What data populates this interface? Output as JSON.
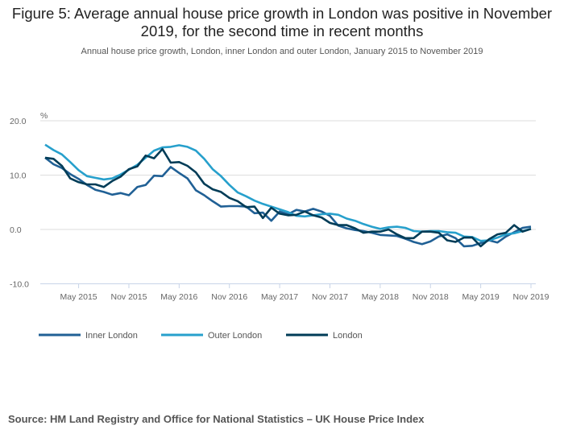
{
  "chart_data": {
    "type": "line",
    "title": "Figure 5: Average annual house price growth in London was positive in November 2019, for the second time in recent months",
    "subtitle": "Annual house price growth, London, inner London and outer London, January 2015 to November 2019",
    "ylabel": "%",
    "xlabel": "",
    "ylim": [
      -10,
      20
    ],
    "yticks": [
      "20.0",
      "10.0",
      "0.0",
      "-10.0"
    ],
    "xticks": [
      "May 2015",
      "Nov 2015",
      "May 2016",
      "Nov 2016",
      "May 2017",
      "Nov 2017",
      "May 2018",
      "Nov 2018",
      "May 2019",
      "Nov 2019"
    ],
    "x_start": "Jan 2015",
    "x_end": "Nov 2019",
    "grid": true,
    "legend_position": "bottom-left",
    "series": [
      {
        "name": "Inner London",
        "color": "#206095",
        "values": [
          13.2,
          12.0,
          11.3,
          10.2,
          9.3,
          8.2,
          7.3,
          6.9,
          6.4,
          6.7,
          6.3,
          7.8,
          8.2,
          9.9,
          9.8,
          11.5,
          10.4,
          9.4,
          7.2,
          6.3,
          5.2,
          4.2,
          4.3,
          4.3,
          4.2,
          3.0,
          3.1,
          1.6,
          3.3,
          2.8,
          3.6,
          3.3,
          3.8,
          3.3,
          2.5,
          0.7,
          0.2,
          -0.1,
          -0.3,
          -0.6,
          -1.0,
          -1.1,
          -1.2,
          -1.7,
          -2.3,
          -2.7,
          -2.2,
          -1.3,
          -0.9,
          -1.6,
          -3.1,
          -3.0,
          -2.5,
          -2.0,
          -2.4,
          -1.3,
          -0.5,
          0.3,
          0.5
        ]
      },
      {
        "name": "Outer London",
        "color": "#27a0cc",
        "values": [
          15.6,
          14.6,
          13.8,
          12.4,
          10.9,
          9.8,
          9.5,
          9.2,
          9.4,
          10.1,
          11.0,
          11.9,
          13.2,
          14.5,
          15.1,
          15.2,
          15.5,
          15.2,
          14.5,
          13.0,
          11.1,
          9.8,
          8.2,
          6.8,
          6.1,
          5.3,
          4.7,
          4.2,
          3.7,
          3.2,
          2.5,
          2.4,
          2.6,
          2.8,
          2.9,
          2.7,
          2.0,
          1.6,
          1.0,
          0.5,
          0.1,
          0.4,
          0.5,
          0.3,
          -0.3,
          -0.4,
          -0.3,
          -0.3,
          -0.5,
          -0.6,
          -1.3,
          -1.4,
          -2.1,
          -2.0,
          -1.5,
          -0.9,
          -0.7,
          -0.3,
          0.1
        ]
      },
      {
        "name": "London",
        "color": "#003c57",
        "values": [
          13.2,
          13.0,
          11.7,
          9.4,
          8.7,
          8.3,
          8.3,
          7.8,
          8.9,
          9.7,
          11.1,
          11.6,
          13.6,
          13.1,
          14.8,
          12.3,
          12.4,
          11.7,
          10.5,
          8.4,
          7.4,
          6.9,
          5.8,
          5.2,
          4.1,
          4.2,
          2.1,
          4.0,
          2.9,
          2.6,
          2.7,
          3.3,
          2.6,
          2.2,
          1.2,
          0.8,
          0.8,
          0.2,
          -0.6,
          -0.4,
          -0.4,
          0.0,
          -0.9,
          -1.6,
          -1.6,
          -0.4,
          -0.4,
          -0.6,
          -2.0,
          -2.3,
          -1.5,
          -1.5,
          -3.1,
          -1.8,
          -0.9,
          -0.6,
          0.8,
          -0.4,
          0.1
        ]
      }
    ]
  },
  "source": "Source: HM Land Registry and Office for National Statistics – UK House Price Index"
}
